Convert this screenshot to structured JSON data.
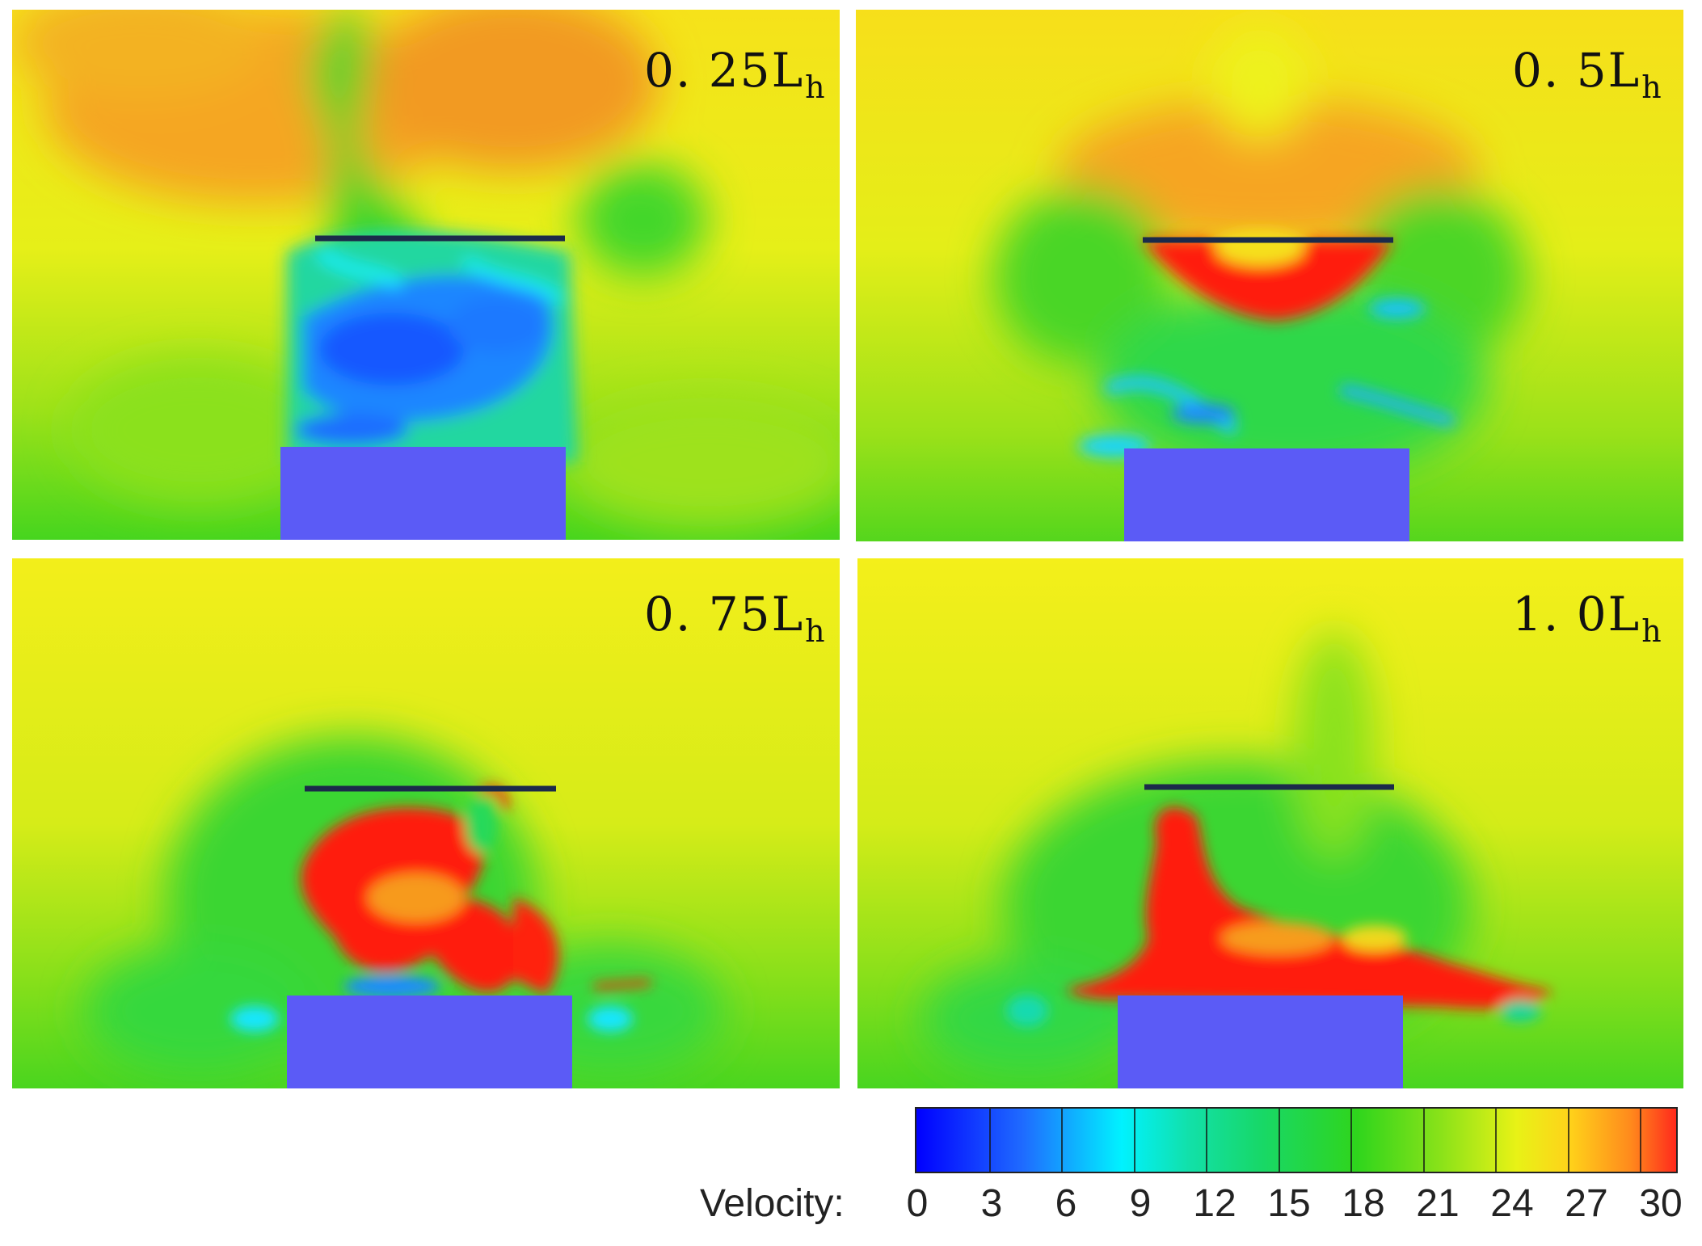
{
  "panels": [
    {
      "label_main": "0. 25L",
      "label_sub": "h"
    },
    {
      "label_main": "0. 5L",
      "label_sub": "h"
    },
    {
      "label_main": "0. 75L",
      "label_sub": "h"
    },
    {
      "label_main": "1. 0L",
      "label_sub": "h"
    }
  ],
  "colorbar": {
    "title": "Velocity:",
    "ticks": [
      "0",
      "3",
      "6",
      "9",
      "12",
      "15",
      "18",
      "21",
      "24",
      "27",
      "30"
    ],
    "colors": {
      "min": "#0000ff",
      "low": "#00f2ff",
      "mid": "#2fd51c",
      "high": "#e8f216",
      "max": "#ff2a1c"
    }
  },
  "colors": {
    "building": "#5b5bf6",
    "plate": "#1b2a4a"
  }
}
